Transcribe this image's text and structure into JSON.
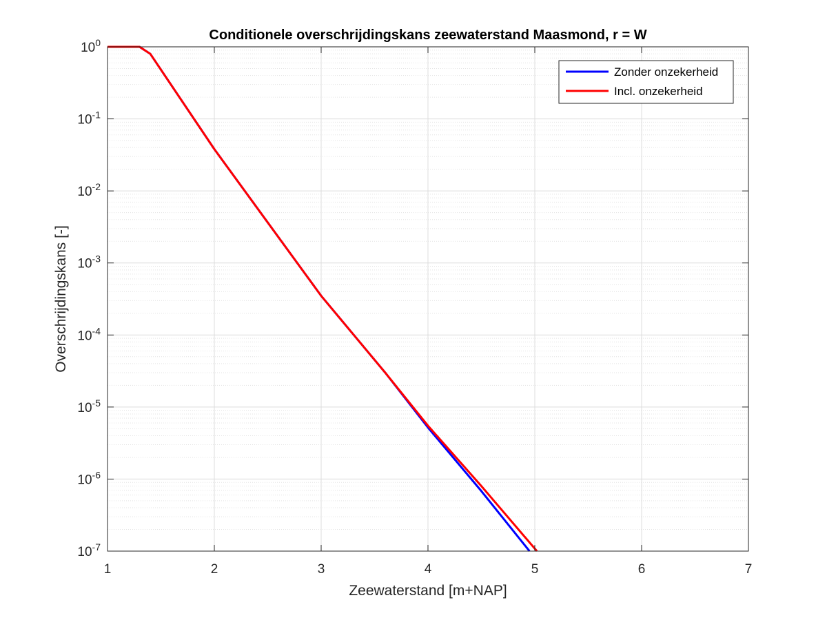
{
  "chart_data": {
    "type": "line",
    "title": "Conditionele overschrijdingskans zeewaterstand Maasmond, r = W",
    "xlabel": "Zeewaterstand [m+NAP]",
    "ylabel": "Overschrijdingskans [-]",
    "xlim": [
      1,
      7
    ],
    "ylim": [
      1e-07,
      1
    ],
    "yscale": "log",
    "xticks": [
      "1",
      "2",
      "3",
      "4",
      "5",
      "6",
      "7"
    ],
    "yticks": [
      {
        "base": "10",
        "exp": "0"
      },
      {
        "base": "10",
        "exp": "-1"
      },
      {
        "base": "10",
        "exp": "-2"
      },
      {
        "base": "10",
        "exp": "-3"
      },
      {
        "base": "10",
        "exp": "-4"
      },
      {
        "base": "10",
        "exp": "-5"
      },
      {
        "base": "10",
        "exp": "-6"
      },
      {
        "base": "10",
        "exp": "-7"
      }
    ],
    "grid": true,
    "legend_position": "top-right",
    "series": [
      {
        "name": "Zonder onzekerheid",
        "color": "#0000ff",
        "x": [
          1.0,
          1.3,
          1.4,
          2.0,
          3.0,
          3.6,
          4.0,
          4.5,
          4.95
        ],
        "y": [
          1.0,
          1.0,
          0.8,
          0.038,
          0.00035,
          3e-05,
          5.2e-06,
          6.8e-07,
          1e-07
        ]
      },
      {
        "name": "Incl. onzekerheid",
        "color": "#ff0000",
        "x": [
          1.0,
          1.3,
          1.4,
          2.0,
          3.0,
          3.6,
          4.0,
          4.5,
          5.02
        ],
        "y": [
          1.0,
          1.0,
          0.8,
          0.038,
          0.00035,
          3e-05,
          5.5e-06,
          8e-07,
          1e-07
        ]
      }
    ]
  }
}
